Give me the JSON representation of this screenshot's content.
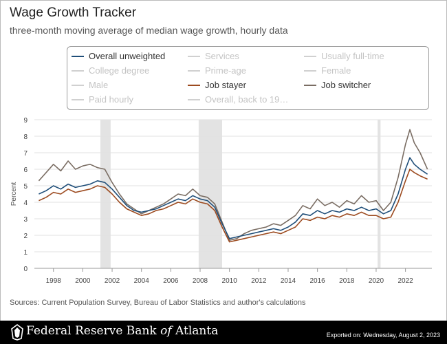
{
  "header": {
    "title": "Wage Growth Tracker",
    "subtitle": "three-month moving average of median wage growth, hourly data"
  },
  "legend": [
    {
      "label": "Overall unweighted",
      "color": "#1f4e79",
      "active": true
    },
    {
      "label": "Services",
      "color": "#c4c4c4",
      "active": false
    },
    {
      "label": "Usually full-time",
      "color": "#c4c4c4",
      "active": false
    },
    {
      "label": "College degree",
      "color": "#c4c4c4",
      "active": false
    },
    {
      "label": "Prime-age",
      "color": "#c4c4c4",
      "active": false
    },
    {
      "label": "Female",
      "color": "#c4c4c4",
      "active": false
    },
    {
      "label": "Male",
      "color": "#c4c4c4",
      "active": false
    },
    {
      "label": "Job stayer",
      "color": "#9c4a1f",
      "active": true
    },
    {
      "label": "Job switcher",
      "color": "#7a6d63",
      "active": true
    },
    {
      "label": "Paid hourly",
      "color": "#c4c4c4",
      "active": false
    },
    {
      "label": "Overall, back to 19…",
      "color": "#c4c4c4",
      "active": false
    }
  ],
  "chart_data": {
    "type": "line",
    "ylabel": "Percent",
    "xlabel": "",
    "xlim": [
      1996.7,
      2023.8
    ],
    "ylim": [
      0,
      9
    ],
    "yticks": [
      "0",
      "1",
      "2",
      "3",
      "4",
      "5",
      "6",
      "7",
      "8",
      "9"
    ],
    "xticks": [
      "1998",
      "2000",
      "2002",
      "2004",
      "2006",
      "2008",
      "2010",
      "2012",
      "2014",
      "2016",
      "2018",
      "2020",
      "2022"
    ],
    "grid": true,
    "recessions": [
      [
        2001.2,
        2001.9
      ],
      [
        2007.9,
        2009.5
      ],
      [
        2020.1,
        2020.3
      ]
    ],
    "series": [
      {
        "name": "Overall unweighted",
        "color": "#1f4e79",
        "x": [
          1997,
          1997.5,
          1998,
          1998.5,
          1999,
          1999.5,
          2000,
          2000.5,
          2001,
          2001.5,
          2002,
          2002.5,
          2003,
          2003.5,
          2004,
          2004.5,
          2005,
          2005.5,
          2006,
          2006.5,
          2007,
          2007.5,
          2008,
          2008.5,
          2009,
          2009.5,
          2010,
          2010.5,
          2011,
          2011.5,
          2012,
          2012.5,
          2013,
          2013.5,
          2014,
          2014.5,
          2015,
          2015.5,
          2016,
          2016.5,
          2017,
          2017.5,
          2018,
          2018.5,
          2019,
          2019.5,
          2020,
          2020.5,
          2021,
          2021.5,
          2022,
          2022.3,
          2022.6,
          2023,
          2023.5
        ],
        "values": [
          4.5,
          4.7,
          5.0,
          4.8,
          5.1,
          4.9,
          5.0,
          5.1,
          5.3,
          5.2,
          4.8,
          4.3,
          3.8,
          3.5,
          3.4,
          3.5,
          3.6,
          3.8,
          4.0,
          4.2,
          4.1,
          4.4,
          4.2,
          4.1,
          3.7,
          2.7,
          1.8,
          1.9,
          2.0,
          2.1,
          2.2,
          2.3,
          2.4,
          2.3,
          2.5,
          2.8,
          3.3,
          3.2,
          3.5,
          3.3,
          3.5,
          3.4,
          3.6,
          3.5,
          3.7,
          3.5,
          3.6,
          3.3,
          3.5,
          4.5,
          6.0,
          6.7,
          6.3,
          6.0,
          5.7
        ]
      },
      {
        "name": "Job stayer",
        "color": "#9c4a1f",
        "x": [
          1997,
          1997.5,
          1998,
          1998.5,
          1999,
          1999.5,
          2000,
          2000.5,
          2001,
          2001.5,
          2002,
          2002.5,
          2003,
          2003.5,
          2004,
          2004.5,
          2005,
          2005.5,
          2006,
          2006.5,
          2007,
          2007.5,
          2008,
          2008.5,
          2009,
          2009.5,
          2010,
          2010.5,
          2011,
          2011.5,
          2012,
          2012.5,
          2013,
          2013.5,
          2014,
          2014.5,
          2015,
          2015.5,
          2016,
          2016.5,
          2017,
          2017.5,
          2018,
          2018.5,
          2019,
          2019.5,
          2020,
          2020.5,
          2021,
          2021.5,
          2022,
          2022.3,
          2022.6,
          2023,
          2023.5
        ],
        "values": [
          4.1,
          4.3,
          4.6,
          4.5,
          4.8,
          4.6,
          4.7,
          4.8,
          5.0,
          4.9,
          4.5,
          4.0,
          3.6,
          3.4,
          3.2,
          3.3,
          3.5,
          3.6,
          3.8,
          4.0,
          3.9,
          4.2,
          4.0,
          3.9,
          3.5,
          2.5,
          1.6,
          1.7,
          1.8,
          1.9,
          2.0,
          2.1,
          2.2,
          2.1,
          2.3,
          2.5,
          3.0,
          2.9,
          3.1,
          3.0,
          3.2,
          3.1,
          3.3,
          3.2,
          3.4,
          3.2,
          3.2,
          3.0,
          3.1,
          4.0,
          5.3,
          6.0,
          5.8,
          5.6,
          5.4
        ]
      },
      {
        "name": "Job switcher",
        "color": "#7a6d63",
        "x": [
          1997,
          1997.5,
          1998,
          1998.5,
          1999,
          1999.5,
          2000,
          2000.5,
          2001,
          2001.5,
          2002,
          2002.5,
          2003,
          2003.5,
          2004,
          2004.5,
          2005,
          2005.5,
          2006,
          2006.5,
          2007,
          2007.5,
          2008,
          2008.5,
          2009,
          2009.5,
          2010,
          2010.5,
          2011,
          2011.5,
          2012,
          2012.5,
          2013,
          2013.5,
          2014,
          2014.5,
          2015,
          2015.5,
          2016,
          2016.5,
          2017,
          2017.5,
          2018,
          2018.5,
          2019,
          2019.5,
          2020,
          2020.5,
          2021,
          2021.5,
          2022,
          2022.3,
          2022.6,
          2023,
          2023.5
        ],
        "values": [
          5.3,
          5.8,
          6.3,
          5.9,
          6.5,
          6.0,
          6.2,
          6.3,
          6.1,
          6.0,
          5.2,
          4.5,
          3.9,
          3.6,
          3.3,
          3.5,
          3.7,
          3.9,
          4.2,
          4.5,
          4.4,
          4.8,
          4.4,
          4.3,
          3.9,
          2.8,
          1.7,
          1.8,
          2.1,
          2.3,
          2.4,
          2.5,
          2.7,
          2.6,
          2.9,
          3.2,
          3.8,
          3.6,
          4.2,
          3.8,
          4.0,
          3.7,
          4.1,
          3.9,
          4.4,
          4.0,
          4.1,
          3.5,
          4.0,
          5.5,
          7.5,
          8.4,
          7.6,
          7.0,
          6.0
        ]
      }
    ]
  },
  "sources": "Sources: Current Population Survey, Bureau of Labor Statistics and author's calculations",
  "footer": {
    "bank_prefix": "Federal Reserve Bank ",
    "bank_of": "of",
    "bank_suffix": " Atlanta",
    "exported": "Exported on: Wednesday, August 2, 2023"
  }
}
